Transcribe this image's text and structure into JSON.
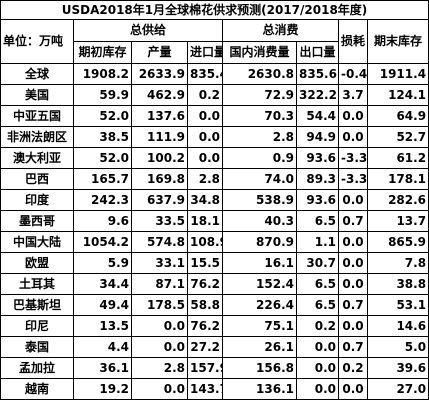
{
  "table": {
    "title": "USDA2018年1月全球棉花供求预测(2017/2018年度)",
    "unit": "单位：万吨",
    "groups": [
      "总供给",
      "总消费"
    ],
    "loss": "损耗",
    "ending": "期末库存",
    "subheaders": [
      "期初库存",
      "产量",
      "进口量",
      "国内消费量",
      "出口量"
    ],
    "rows": [
      [
        "全球",
        "1908.2",
        "2633.9",
        "835.4",
        "2630.8",
        "835.6",
        "-0.4",
        "1911.4"
      ],
      [
        "美国",
        "59.9",
        "462.9",
        "0.2",
        "72.9",
        "322.2",
        "3.7",
        "124.1"
      ],
      [
        "中亚五国",
        "52.0",
        "137.6",
        "0.0",
        "70.3",
        "54.4",
        "0.0",
        "64.9"
      ],
      [
        "非洲法朗区",
        "38.5",
        "111.9",
        "0.0",
        "2.8",
        "94.9",
        "0.0",
        "52.7"
      ],
      [
        "澳大利亚",
        "52.0",
        "100.2",
        "0.0",
        "0.9",
        "93.6",
        "-3.3",
        "61.2"
      ],
      [
        "巴西",
        "165.7",
        "169.8",
        "2.8",
        "74.0",
        "89.3",
        "-3.3",
        "178.1"
      ],
      [
        "印度",
        "242.3",
        "637.9",
        "34.8",
        "538.9",
        "93.6",
        "0.0",
        "282.6"
      ],
      [
        "墨西哥",
        "9.6",
        "33.5",
        "18.1",
        "40.3",
        "6.5",
        "0.7",
        "13.7"
      ],
      [
        "中国大陆",
        "1054.2",
        "574.8",
        "108.9",
        "870.9",
        "1.1",
        "0.0",
        "865.9"
      ],
      [
        "欧盟",
        "5.9",
        "33.1",
        "15.5",
        "16.1",
        "30.7",
        "0.0",
        "7.8"
      ],
      [
        "土耳其",
        "34.4",
        "87.1",
        "76.2",
        "152.4",
        "6.5",
        "0.0",
        "38.8"
      ],
      [
        "巴基斯坦",
        "49.4",
        "178.5",
        "58.8",
        "226.4",
        "6.5",
        "0.7",
        "53.1"
      ],
      [
        "印尼",
        "13.5",
        "0.0",
        "76.2",
        "75.1",
        "0.2",
        "0.0",
        "14.6"
      ],
      [
        "泰国",
        "4.4",
        "0.0",
        "27.2",
        "26.1",
        "0.0",
        "0.7",
        "5.0"
      ],
      [
        "孟加拉",
        "36.1",
        "2.8",
        "157.9",
        "156.8",
        "0.0",
        "0.2",
        "39.6"
      ],
      [
        "越南",
        "19.2",
        "0.0",
        "143.7",
        "136.1",
        "0.0",
        "0.0",
        "27.0"
      ]
    ]
  }
}
